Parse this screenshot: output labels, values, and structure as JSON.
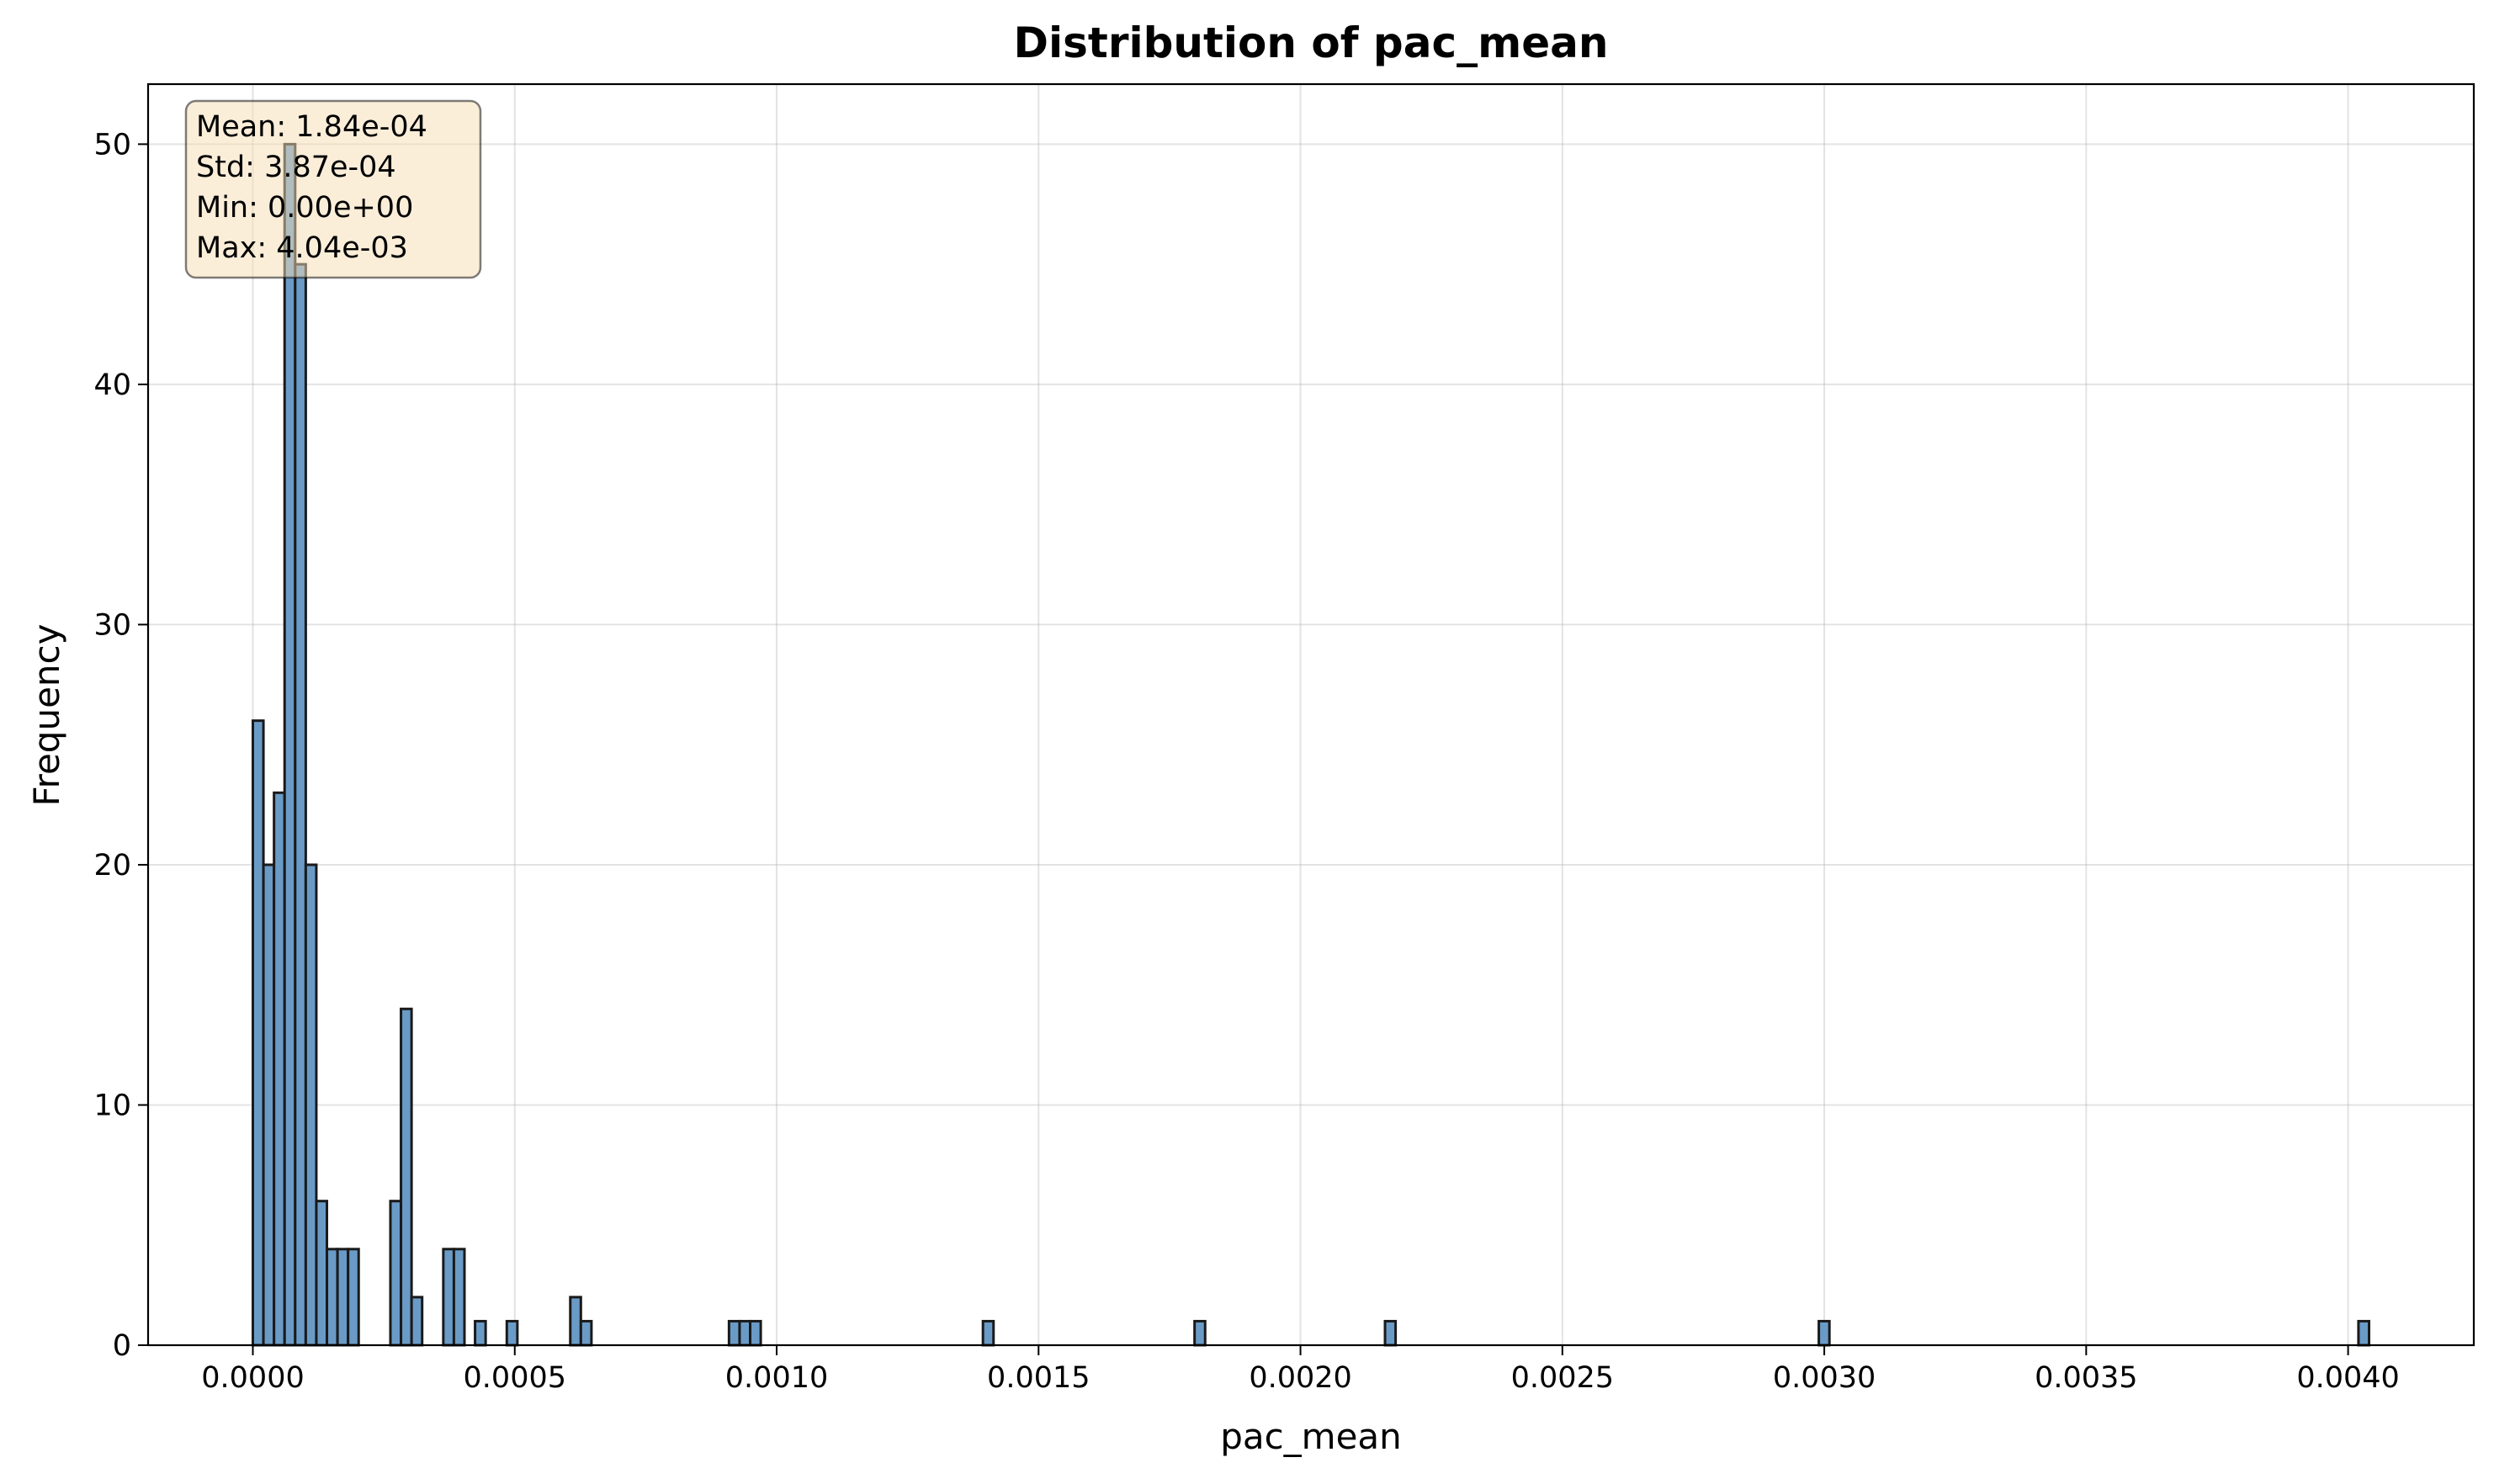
{
  "chart_data": {
    "type": "bar",
    "title": "Distribution of pac_mean",
    "xlabel": "pac_mean",
    "ylabel": "Frequency",
    "xlim": [
      -0.0002,
      0.00424
    ],
    "ylim": [
      0,
      52.5
    ],
    "x_ticks": [
      "0.0000",
      "0.0005",
      "0.0010",
      "0.0015",
      "0.0020",
      "0.0025",
      "0.0030",
      "0.0035",
      "0.0040"
    ],
    "x_tick_values": [
      0,
      0.0005,
      0.001,
      0.0015,
      0.002,
      0.0025,
      0.003,
      0.0035,
      0.004
    ],
    "y_ticks": [
      "0",
      "10",
      "20",
      "30",
      "40",
      "50"
    ],
    "y_tick_values": [
      0,
      10,
      20,
      30,
      40,
      50
    ],
    "grid": true,
    "bar_color": "#6a9bc7",
    "edge_color": "#1a1a1a",
    "bin_width": 2.02e-05,
    "bins": [
      {
        "x": 0.0,
        "count": 26
      },
      {
        "x": 2.02e-05,
        "count": 20
      },
      {
        "x": 4.04e-05,
        "count": 23
      },
      {
        "x": 6.06e-05,
        "count": 50
      },
      {
        "x": 8.08e-05,
        "count": 45
      },
      {
        "x": 0.000101,
        "count": 20
      },
      {
        "x": 0.0001212,
        "count": 6
      },
      {
        "x": 0.0001414,
        "count": 4
      },
      {
        "x": 0.0001616,
        "count": 4
      },
      {
        "x": 0.0001818,
        "count": 4
      },
      {
        "x": 0.0002626,
        "count": 6
      },
      {
        "x": 0.0002828,
        "count": 14
      },
      {
        "x": 0.000303,
        "count": 2
      },
      {
        "x": 0.0003636,
        "count": 4
      },
      {
        "x": 0.0003838,
        "count": 4
      },
      {
        "x": 0.0004242,
        "count": 1
      },
      {
        "x": 0.0004848,
        "count": 1
      },
      {
        "x": 0.000606,
        "count": 2
      },
      {
        "x": 0.0006262,
        "count": 1
      },
      {
        "x": 0.000909,
        "count": 1
      },
      {
        "x": 0.0009292,
        "count": 1
      },
      {
        "x": 0.0009494,
        "count": 1
      },
      {
        "x": 0.0013938,
        "count": 1
      },
      {
        "x": 0.0017978,
        "count": 1
      },
      {
        "x": 0.0021614,
        "count": 1
      },
      {
        "x": 0.0029896,
        "count": 1
      },
      {
        "x": 0.0040198,
        "count": 1
      }
    ],
    "annotation": {
      "lines": [
        "Mean: 1.84e-04",
        "Std: 3.87e-04",
        "Min: 0.00e+00",
        "Max: 4.04e-03"
      ],
      "background": "#f5deb3",
      "placement": "top-left"
    }
  }
}
